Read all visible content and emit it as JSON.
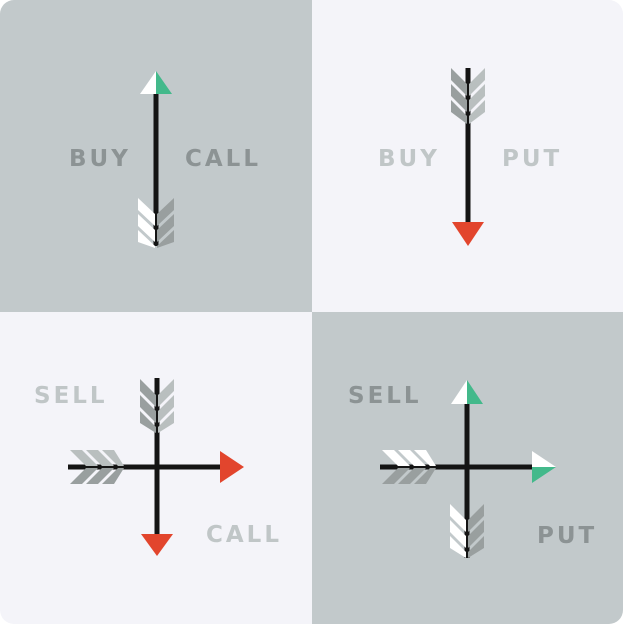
{
  "colors": {
    "gray_panel": "#c2c9cb",
    "light_panel": "#f4f4f9",
    "shaft": "#141414",
    "green": "#43b98b",
    "red": "#e2452d",
    "fletch_dark": "#999f9f",
    "fletch_light": "#ffffff",
    "label_on_gray": "#8c9394",
    "label_on_light": "#c0c6c7"
  },
  "quadrants": [
    {
      "id": "buy-call",
      "labels": [
        "BUY",
        "CALL"
      ],
      "arrows": [
        {
          "direction": "up",
          "head": "green",
          "fletch": "gray-white"
        }
      ]
    },
    {
      "id": "buy-put",
      "labels": [
        "BUY",
        "PUT"
      ],
      "arrows": [
        {
          "direction": "down",
          "head": "red",
          "fletch": "gray"
        }
      ]
    },
    {
      "id": "sell-call",
      "labels": [
        "SELL",
        "CALL"
      ],
      "arrows": [
        {
          "direction": "down",
          "head": "red",
          "fletch": "gray"
        },
        {
          "direction": "right",
          "head": "red",
          "fletch": "gray"
        }
      ]
    },
    {
      "id": "sell-put",
      "labels": [
        "SELL",
        "PUT"
      ],
      "arrows": [
        {
          "direction": "up",
          "head": "green",
          "fletch": "gray-white"
        },
        {
          "direction": "right",
          "head": "green",
          "fletch": "gray-white"
        }
      ]
    }
  ]
}
